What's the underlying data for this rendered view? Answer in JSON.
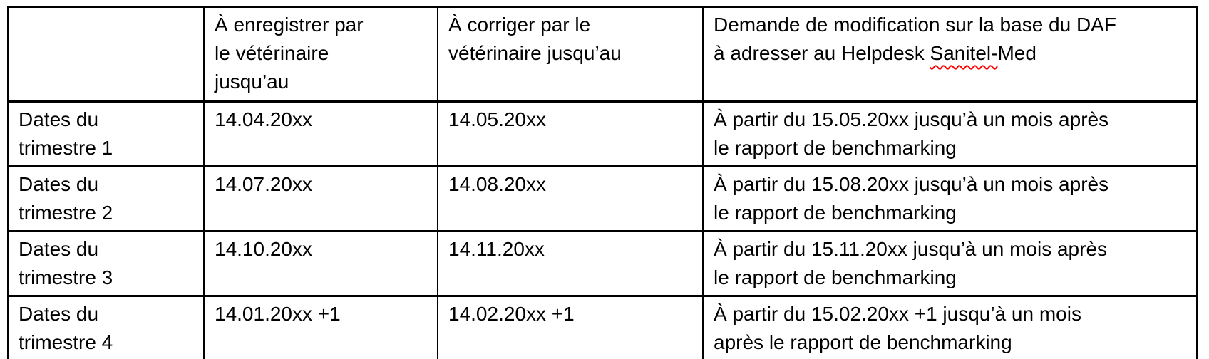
{
  "document": {
    "language": "fr",
    "background_color": "#ffffff",
    "text_color": "#000000",
    "table_border_color": "#000000",
    "spellcheck_underline_color": "#ff0000"
  },
  "table": {
    "header": {
      "row_label": "",
      "register": "À enregistrer par\nle vétérinaire\njusqu’au",
      "correct": "À corriger par le\nvétérinaire jusqu’au",
      "modification_prefix": "Demande de modification sur la base du DAF\nà adresser au Helpdesk ",
      "modification_misspelled": "Sanitel-",
      "modification_suffix": "Med"
    },
    "rows": [
      {
        "label": "Dates du\ntrimestre 1",
        "register": "14.04.20xx",
        "correct": "14.05.20xx",
        "modification": "À partir du 15.05.20xx jusqu’à un mois après\nle rapport de benchmarking"
      },
      {
        "label": "Dates du\ntrimestre 2",
        "register": "14.07.20xx",
        "correct": "14.08.20xx",
        "modification": "À partir du 15.08.20xx jusqu’à un mois après\nle rapport de benchmarking"
      },
      {
        "label": "Dates du\ntrimestre 3",
        "register": "14.10.20xx",
        "correct": "14.11.20xx",
        "modification": "À partir du 15.11.20xx jusqu’à un mois après\nle rapport de benchmarking"
      },
      {
        "label": "Dates du\ntrimestre 4",
        "register": "14.01.20xx +1",
        "correct": "14.02.20xx +1",
        "modification": "À partir du 15.02.20xx +1 jusqu’à un mois\naprès le rapport de benchmarking"
      }
    ]
  }
}
